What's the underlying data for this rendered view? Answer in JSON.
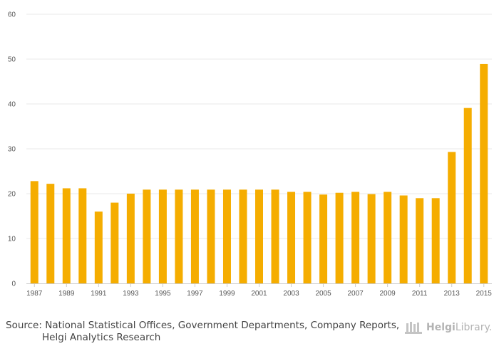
{
  "chart_data": {
    "type": "bar",
    "title": "",
    "xlabel": "",
    "ylabel": "",
    "ylim": [
      0,
      60
    ],
    "yticks": [
      0,
      10,
      20,
      30,
      40,
      50,
      60
    ],
    "grid": true,
    "bar_color": "#f5ad00",
    "categories": [
      "1987",
      "1988",
      "1989",
      "1990",
      "1991",
      "1992",
      "1993",
      "1994",
      "1995",
      "1996",
      "1997",
      "1998",
      "1999",
      "2000",
      "2001",
      "2002",
      "2003",
      "2004",
      "2005",
      "2006",
      "2007",
      "2008",
      "2009",
      "2010",
      "2011",
      "2012",
      "2013",
      "2014",
      "2015"
    ],
    "x_tick_labels": [
      "1987",
      "1989",
      "1991",
      "1993",
      "1995",
      "1997",
      "1999",
      "2001",
      "2003",
      "2005",
      "2007",
      "2009",
      "2011",
      "2013",
      "2015"
    ],
    "values": [
      22.8,
      22.2,
      21.2,
      21.2,
      16.0,
      18.0,
      20.0,
      20.9,
      20.9,
      20.9,
      20.9,
      20.9,
      20.9,
      20.9,
      20.9,
      20.9,
      20.4,
      20.4,
      19.8,
      20.2,
      20.4,
      19.9,
      20.4,
      19.6,
      19.0,
      19.0,
      29.3,
      39.1,
      48.9
    ]
  },
  "source": {
    "prefix": "Source:",
    "line1": "National Statistical Offices, Government Departments, Company Reports,",
    "line2": "Helgi Analytics Research"
  },
  "logo": {
    "brand": "Helgi",
    "suffix": "Library."
  }
}
